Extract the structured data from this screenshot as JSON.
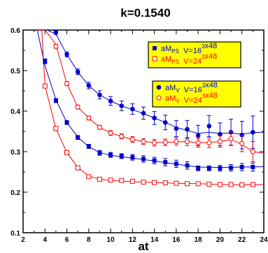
{
  "chart_data": {
    "type": "scatter",
    "title": "k=0.1540",
    "xlabel": "at",
    "ylabel": "",
    "xlim": [
      2,
      24
    ],
    "ylim": [
      0.1,
      0.6
    ],
    "xticks": [
      "2",
      "4",
      "6",
      "8",
      "10",
      "12",
      "14",
      "16",
      "18",
      "20",
      "22",
      "24"
    ],
    "yticks": [
      "0.1",
      "0.2",
      "0.3",
      "0.4",
      "0.5",
      "0.6"
    ],
    "legend_boxes": [
      {
        "entries": [
          {
            "label_main": "aM",
            "label_sub": "PS",
            "label_rest": "  V=16",
            "label_sup": "3",
            "label_end": "x48",
            "marker": "filled-square",
            "color": "#0000cc"
          },
          {
            "label_main": "aM",
            "label_sub": "PS",
            "label_rest": "  V=24",
            "label_sup": "3",
            "label_end": "x48",
            "marker": "open-square",
            "color": "#ff0000"
          }
        ]
      },
      {
        "entries": [
          {
            "label_main": "aM",
            "label_sub": "V",
            "label_rest": "  V=16",
            "label_sup": "3",
            "label_end": "x48",
            "marker": "filled-circle",
            "color": "#0000cc"
          },
          {
            "label_main": "aM",
            "label_sub": "V",
            "label_rest": "  V=24",
            "label_sup": "3",
            "label_end": "x48",
            "marker": "open-circle",
            "color": "#ff0000"
          }
        ]
      }
    ],
    "series": [
      {
        "marker": "filled-square",
        "color": "#0000cc",
        "x": [
          4,
          5,
          6,
          7,
          8,
          9,
          10,
          11,
          12,
          13,
          14,
          15,
          16,
          17,
          18,
          19,
          20,
          21,
          22,
          23
        ],
        "y": [
          0.523,
          0.426,
          0.372,
          0.335,
          0.313,
          0.297,
          0.292,
          0.289,
          0.286,
          0.282,
          0.278,
          0.274,
          0.27,
          0.266,
          0.259,
          0.259,
          0.259,
          0.26,
          0.262,
          0.262
        ],
        "err": [
          0.006,
          0.005,
          0.005,
          0.005,
          0.005,
          0.006,
          0.006,
          0.006,
          0.007,
          0.008,
          0.008,
          0.009,
          0.009,
          0.009,
          0.006,
          0.006,
          0.007,
          0.008,
          0.009,
          0.01
        ]
      },
      {
        "marker": "open-square",
        "color": "#ff0000",
        "x": [
          4,
          5,
          6,
          7,
          8,
          9,
          10,
          11,
          12,
          13,
          14,
          15,
          16,
          17,
          18,
          19,
          20,
          21,
          22,
          23
        ],
        "y": [
          0.462,
          0.357,
          0.298,
          0.26,
          0.238,
          0.232,
          0.23,
          0.229,
          0.227,
          0.225,
          0.224,
          0.223,
          0.222,
          0.221,
          0.221,
          0.22,
          0.219,
          0.219,
          0.218,
          0.219
        ],
        "err": [
          0.004,
          0.004,
          0.003,
          0.003,
          0.002,
          0.002,
          0.002,
          0.002,
          0.002,
          0.002,
          0.002,
          0.002,
          0.003,
          0.003,
          0.003,
          0.003,
          0.003,
          0.004,
          0.004,
          0.004
        ]
      },
      {
        "marker": "filled-circle",
        "color": "#0000cc",
        "x": [
          5,
          6,
          7,
          8,
          9,
          10,
          11,
          12,
          13,
          14,
          15,
          16,
          17,
          18,
          19,
          20,
          21,
          22,
          23
        ],
        "y": [
          0.595,
          0.54,
          0.497,
          0.463,
          0.44,
          0.425,
          0.413,
          0.405,
          0.395,
          0.383,
          0.372,
          0.357,
          0.355,
          0.34,
          0.363,
          0.343,
          0.348,
          0.341,
          0.348
        ],
        "err": [
          0.006,
          0.006,
          0.007,
          0.008,
          0.01,
          0.011,
          0.012,
          0.013,
          0.015,
          0.016,
          0.018,
          0.02,
          0.022,
          0.025,
          0.026,
          0.028,
          0.032,
          0.034,
          0.04
        ]
      },
      {
        "marker": "open-circle",
        "color": "#ff0000",
        "x": [
          4,
          5,
          6,
          7,
          8,
          9,
          10,
          11,
          12,
          13,
          14,
          15,
          16,
          17,
          18,
          19,
          20,
          21,
          22,
          23
        ],
        "y": [
          0.63,
          0.56,
          0.468,
          0.41,
          0.383,
          0.36,
          0.346,
          0.338,
          0.33,
          0.325,
          0.322,
          0.323,
          0.325,
          0.325,
          0.322,
          0.322,
          0.325,
          0.332,
          0.32,
          0.3
        ],
        "err": [
          0.006,
          0.005,
          0.005,
          0.005,
          0.005,
          0.005,
          0.006,
          0.006,
          0.007,
          0.007,
          0.008,
          0.008,
          0.009,
          0.01,
          0.011,
          0.012,
          0.014,
          0.017,
          0.02,
          0.025
        ]
      }
    ],
    "fit_lines": [
      {
        "color": "#0000cc",
        "x": [
          3.3,
          4,
          5,
          6,
          7,
          8,
          9,
          10,
          12,
          14,
          16,
          18,
          20,
          22,
          24
        ],
        "y": [
          0.6,
          0.512,
          0.428,
          0.372,
          0.336,
          0.312,
          0.298,
          0.291,
          0.284,
          0.277,
          0.269,
          0.262,
          0.261,
          0.262,
          0.263
        ]
      },
      {
        "color": "#ff0000",
        "x": [
          3.7,
          4,
          5,
          6,
          7,
          8,
          9,
          10,
          12,
          14,
          16,
          18,
          20,
          22,
          24
        ],
        "y": [
          0.6,
          0.462,
          0.357,
          0.298,
          0.261,
          0.24,
          0.232,
          0.229,
          0.226,
          0.224,
          0.222,
          0.221,
          0.219,
          0.218,
          0.219
        ]
      },
      {
        "color": "#0000cc",
        "x": [
          4.2,
          5,
          6,
          7,
          8,
          9,
          10,
          11,
          12,
          13,
          14,
          15,
          16,
          17,
          18,
          19,
          20,
          21,
          22,
          23,
          24
        ],
        "y": [
          0.6,
          0.59,
          0.54,
          0.497,
          0.463,
          0.44,
          0.425,
          0.413,
          0.404,
          0.394,
          0.383,
          0.372,
          0.36,
          0.352,
          0.345,
          0.348,
          0.345,
          0.346,
          0.343,
          0.347,
          0.348
        ]
      },
      {
        "color": "#ff0000",
        "x": [
          3.2,
          4,
          5,
          6,
          7,
          8,
          9,
          10,
          11,
          12,
          13,
          14,
          15,
          16,
          17,
          18,
          19,
          20,
          21,
          22,
          23,
          24
        ],
        "y": [
          0.6,
          0.6,
          0.565,
          0.468,
          0.41,
          0.383,
          0.36,
          0.346,
          0.338,
          0.33,
          0.325,
          0.323,
          0.323,
          0.324,
          0.325,
          0.322,
          0.323,
          0.325,
          0.33,
          0.318,
          0.3,
          0.296
        ]
      }
    ]
  }
}
